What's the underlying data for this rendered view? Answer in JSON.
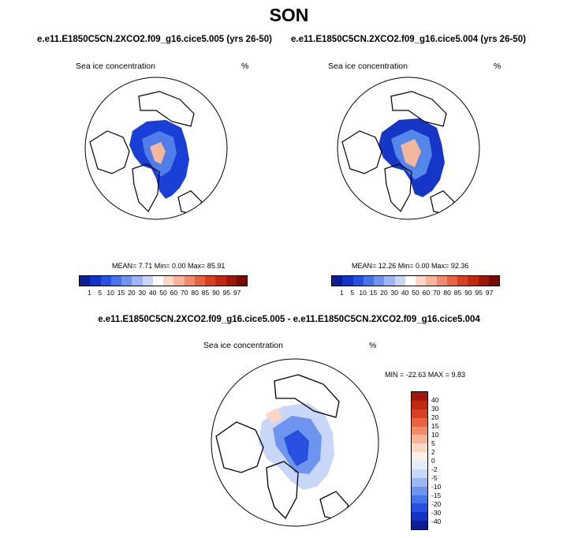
{
  "title": "SON",
  "panels": [
    {
      "run_title": "e.e11.E1850C5CN.2XCO2.f09_g16.cice5.005 (yrs 26-50)",
      "var_label": "Sea ice concentration",
      "units": "%",
      "stats": "MEAN=  7.71  Min=   0.00  Max=  85.91"
    },
    {
      "run_title": "e.e11.E1850C5CN.2XCO2.f09_g16.cice5.004 (yrs 26-50)",
      "var_label": "Sea ice concentration",
      "units": "%",
      "stats": "MEAN=  12.26  Min=   0.00  Max=  92.36"
    }
  ],
  "diff": {
    "title": "e.e11.E1850C5CN.2XCO2.f09_g16.cice5.005 - e.e11.E1850C5CN.2XCO2.f09_g16.cice5.004",
    "var_label": "Sea ice concentration",
    "units": "%",
    "stats": "MIN = -22.63 MAX =   9.83"
  },
  "colorbar_abs": {
    "labels": [
      "1",
      "5",
      "10",
      "15",
      "20",
      "30",
      "40",
      "50",
      "60",
      "70",
      "80",
      "85",
      "90",
      "95",
      "97"
    ],
    "colors": [
      "#0a1f96",
      "#1232c8",
      "#2750e0",
      "#4575ea",
      "#6d95ef",
      "#9bb6f3",
      "#c8d6f7",
      "#ffffff",
      "#fbd8c6",
      "#f6b498",
      "#ef8b6b",
      "#e8633f",
      "#d9411e",
      "#c12a10",
      "#a01607",
      "#7a0b02"
    ]
  },
  "colorbar_diff": {
    "labels": [
      "40",
      "30",
      "20",
      "15",
      "10",
      "5",
      "2",
      "0",
      "-2",
      "-5",
      "-10",
      "-15",
      "-20",
      "-30",
      "-40"
    ],
    "colors": [
      "#a01607",
      "#c12a10",
      "#d9411e",
      "#e8633f",
      "#ef8b6b",
      "#f6b498",
      "#fbd8c6",
      "#fdf0e6",
      "#e4ecfb",
      "#c8d6f7",
      "#9bb6f3",
      "#6d95ef",
      "#4575ea",
      "#2750e0",
      "#1232c8",
      "#0a1f96"
    ]
  }
}
